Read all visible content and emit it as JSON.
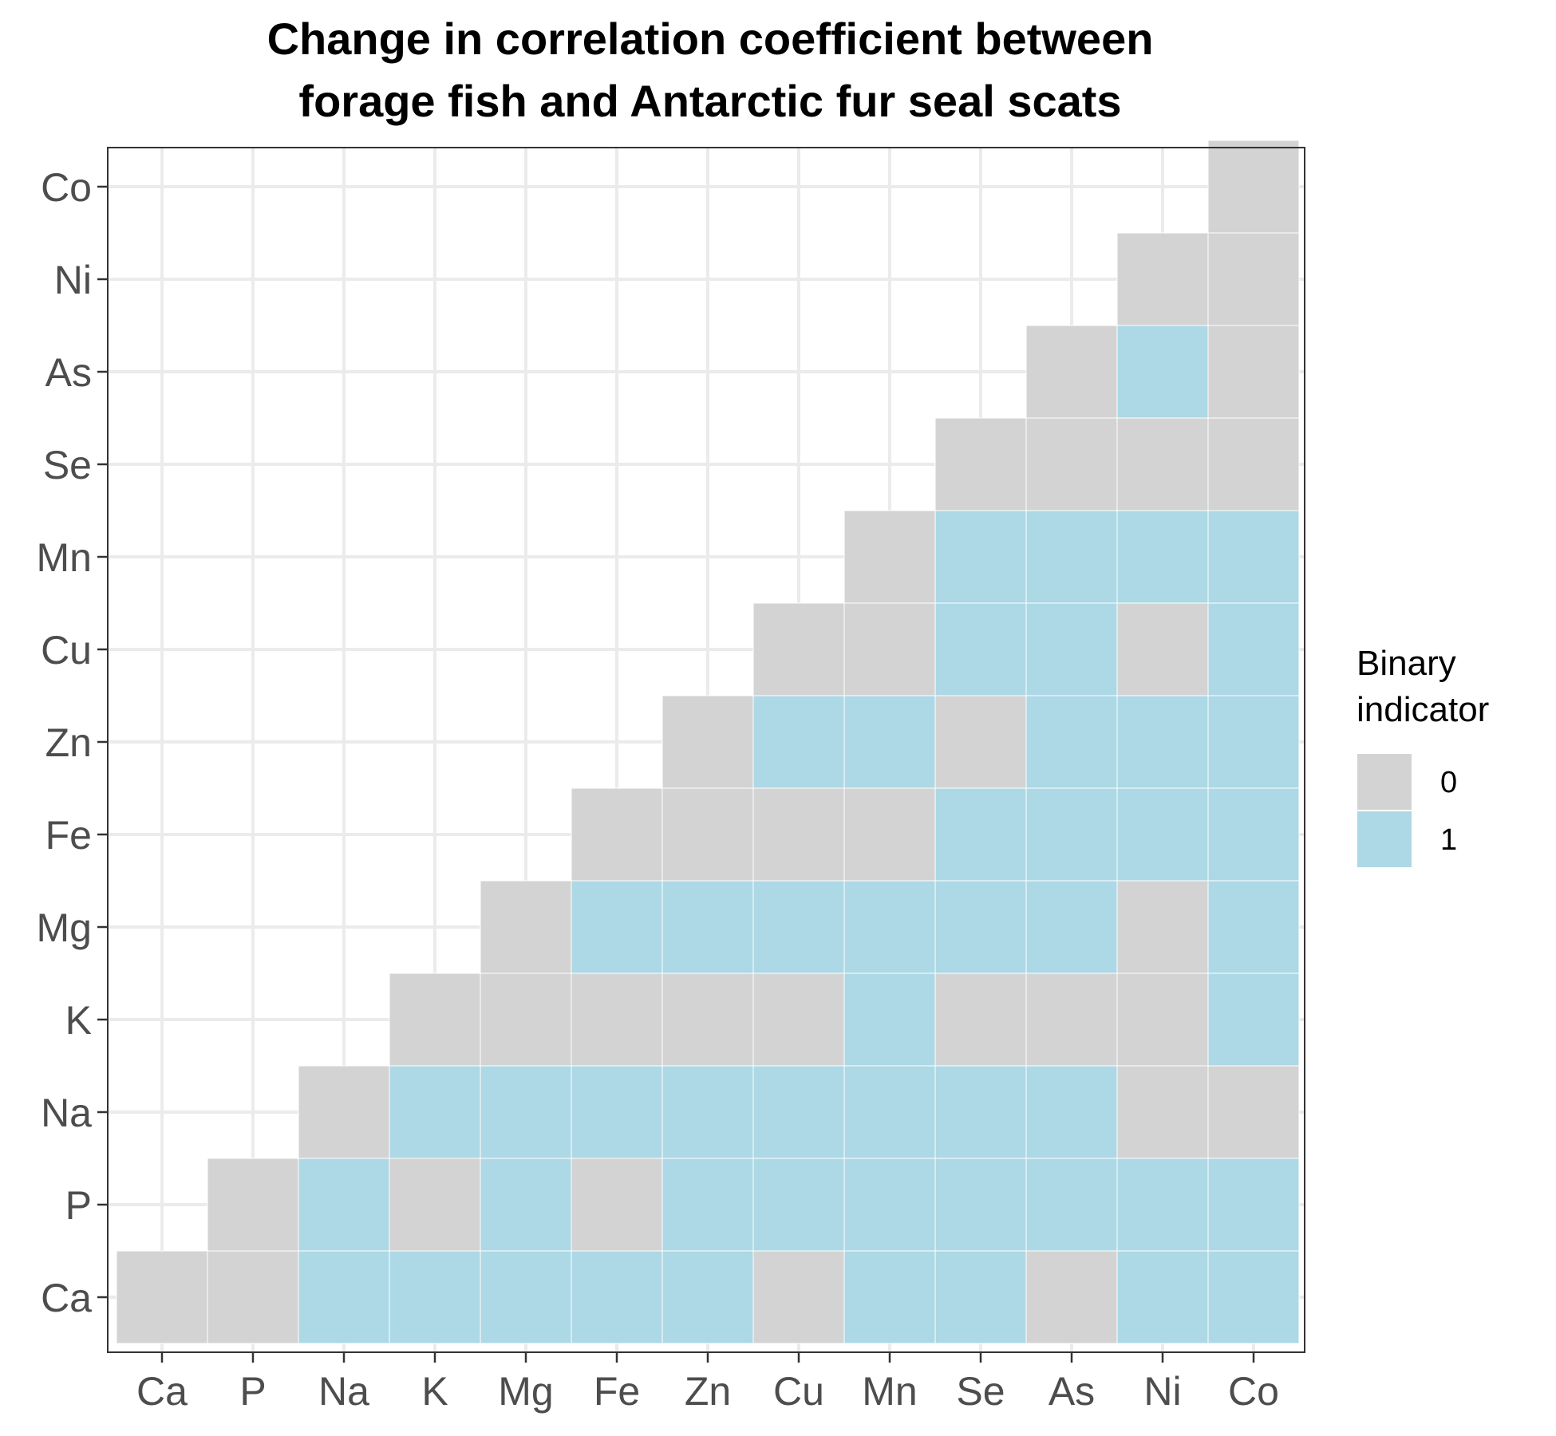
{
  "chart_data": {
    "type": "heatmap",
    "title_lines": [
      "Change in correlation coefficient between",
      "forage fish and Antarctic fur seal scats"
    ],
    "xlabel": "",
    "ylabel": "",
    "x_categories": [
      "Ca",
      "P",
      "Na",
      "K",
      "Mg",
      "Fe",
      "Zn",
      "Cu",
      "Mn",
      "Se",
      "As",
      "Ni",
      "Co"
    ],
    "y_categories": [
      "Ca",
      "P",
      "Na",
      "K",
      "Mg",
      "Fe",
      "Zn",
      "Cu",
      "Mn",
      "Se",
      "As",
      "Ni",
      "Co"
    ],
    "matrix_description": "values[row][col]; row = y category index (Ca first), col = x category index; null = no cell",
    "values": [
      [
        0,
        0,
        1,
        1,
        1,
        1,
        1,
        0,
        1,
        1,
        0,
        1,
        1
      ],
      [
        null,
        0,
        1,
        0,
        1,
        0,
        1,
        1,
        1,
        1,
        1,
        1,
        1
      ],
      [
        null,
        null,
        0,
        1,
        1,
        1,
        1,
        1,
        1,
        1,
        1,
        0,
        0
      ],
      [
        null,
        null,
        null,
        0,
        0,
        0,
        0,
        0,
        1,
        0,
        0,
        0,
        1
      ],
      [
        null,
        null,
        null,
        null,
        0,
        1,
        1,
        1,
        1,
        1,
        1,
        0,
        1
      ],
      [
        null,
        null,
        null,
        null,
        null,
        0,
        0,
        0,
        0,
        1,
        1,
        1,
        1
      ],
      [
        null,
        null,
        null,
        null,
        null,
        null,
        0,
        1,
        1,
        0,
        1,
        1,
        1
      ],
      [
        null,
        null,
        null,
        null,
        null,
        null,
        null,
        0,
        0,
        1,
        1,
        0,
        1
      ],
      [
        null,
        null,
        null,
        null,
        null,
        null,
        null,
        null,
        0,
        1,
        1,
        1,
        1
      ],
      [
        null,
        null,
        null,
        null,
        null,
        null,
        null,
        null,
        null,
        0,
        0,
        0,
        0
      ],
      [
        null,
        null,
        null,
        null,
        null,
        null,
        null,
        null,
        null,
        null,
        0,
        1,
        0
      ],
      [
        null,
        null,
        null,
        null,
        null,
        null,
        null,
        null,
        null,
        null,
        null,
        0,
        0
      ],
      [
        null,
        null,
        null,
        null,
        null,
        null,
        null,
        null,
        null,
        null,
        null,
        null,
        0
      ]
    ],
    "legend": {
      "title_lines": [
        "Binary",
        "indicator"
      ],
      "position": "right",
      "items": [
        {
          "label": "0",
          "value": 0,
          "color": "#d3d3d3"
        },
        {
          "label": "1",
          "value": 1,
          "color": "#add8e6"
        }
      ]
    },
    "colors": {
      "0": "#d3d3d3",
      "1": "#add8e6"
    },
    "grid": true
  }
}
